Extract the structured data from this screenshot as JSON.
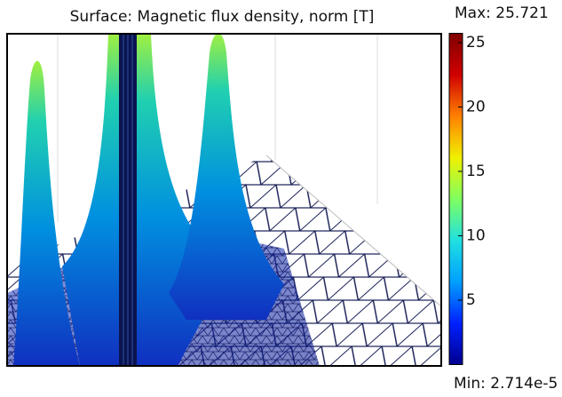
{
  "chart_data": {
    "type": "surface",
    "title": "Surface: Magnetic flux density, norm [T]",
    "max": {
      "value": 25.721,
      "label": "Max: 25.721"
    },
    "min": {
      "value": 2.714e-05,
      "label": "Min: 2.714e-5"
    },
    "colorbar_ticks": [
      5,
      10,
      15,
      20,
      25
    ],
    "colormap": [
      "#00008f",
      "#0020ff",
      "#00a0ff",
      "#20e0e0",
      "#80ff60",
      "#f0f000",
      "#ff8000",
      "#d00000",
      "#800000"
    ]
  }
}
